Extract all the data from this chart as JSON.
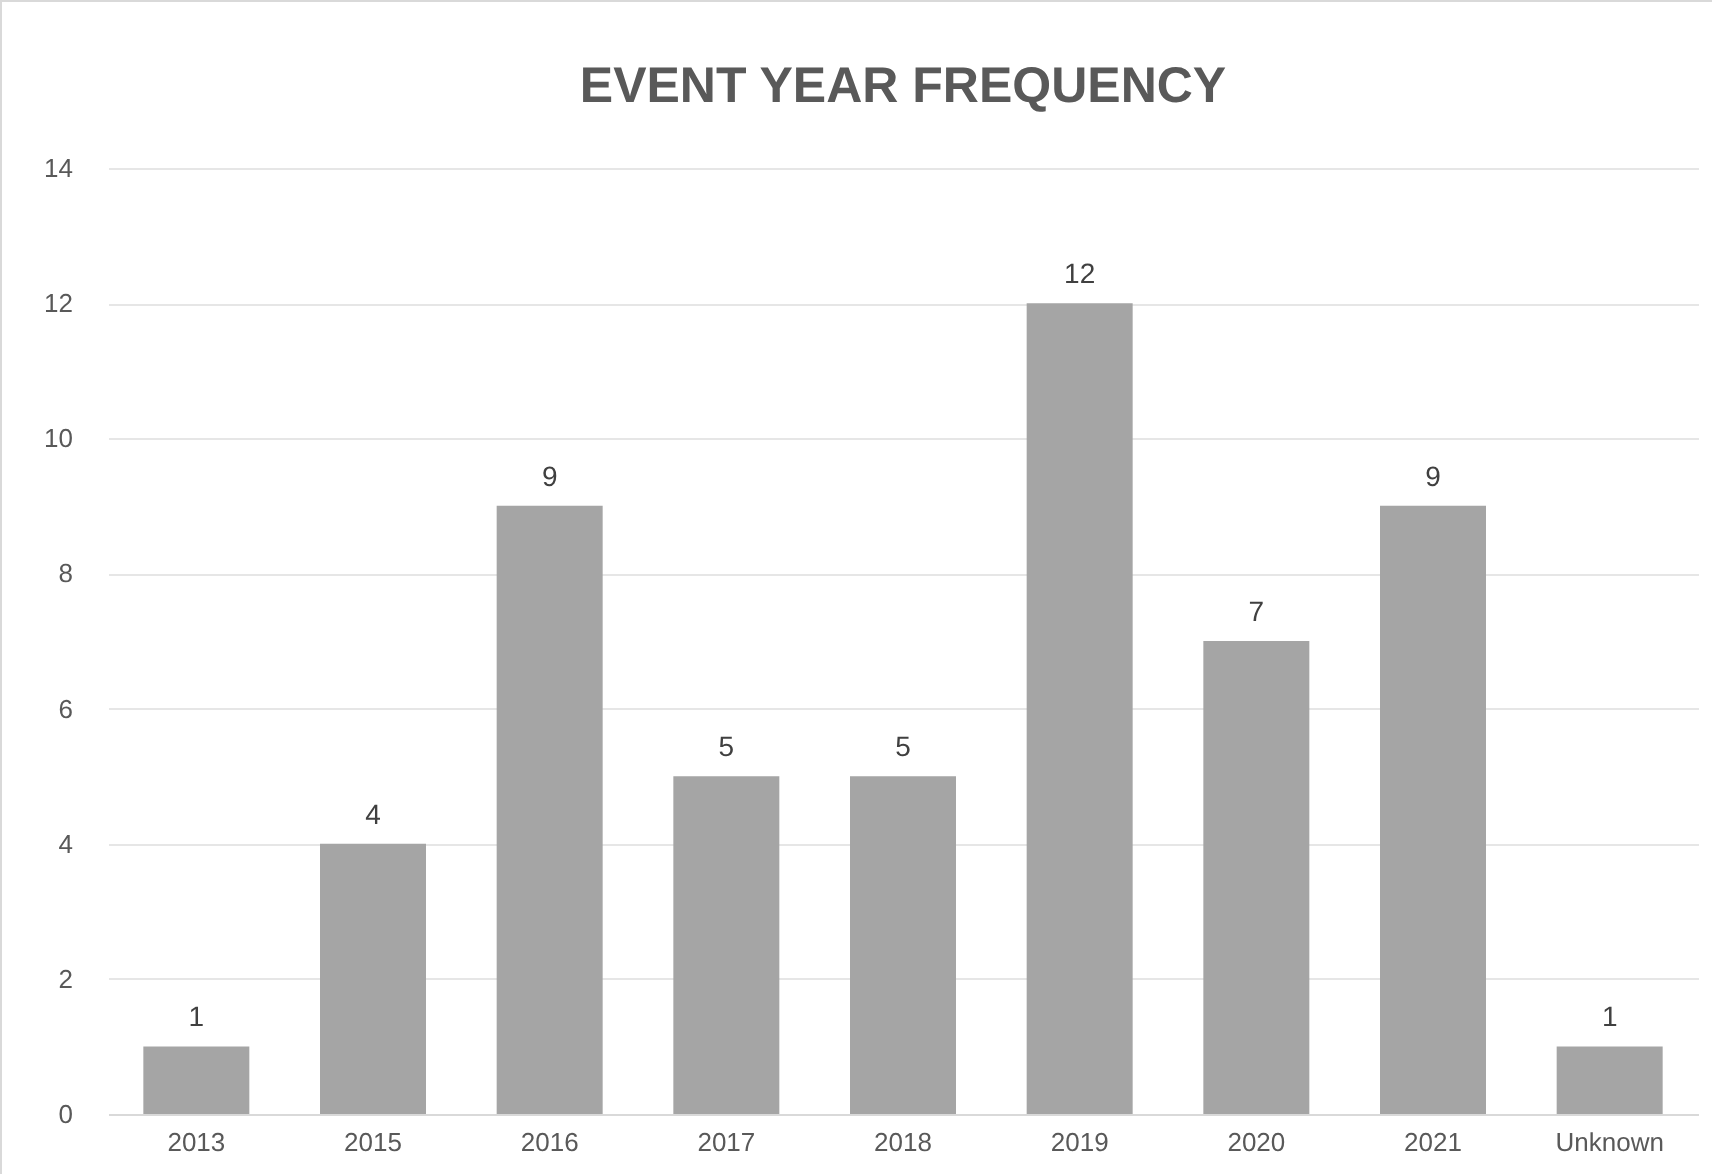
{
  "chart_data": {
    "type": "bar",
    "title": "EVENT YEAR FREQUENCY",
    "categories": [
      "2013",
      "2015",
      "2016",
      "2017",
      "2018",
      "2019",
      "2020",
      "2021",
      "Unknown"
    ],
    "values": [
      1,
      4,
      9,
      5,
      5,
      12,
      7,
      9,
      1
    ],
    "color": "#a5a5a5",
    "ylim": [
      0,
      14
    ],
    "yticks": [
      0,
      2,
      4,
      6,
      8,
      10,
      12,
      14
    ],
    "grid": "y",
    "data_labels": true
  }
}
